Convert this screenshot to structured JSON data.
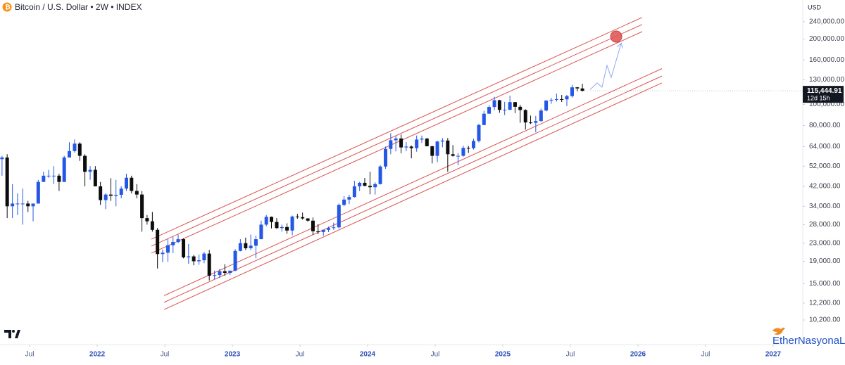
{
  "chart_data": {
    "type": "candlestick",
    "title": "Bitcoin / U.S. Dollar • 2W • INDEX",
    "currency": "USD",
    "watermark": "EtherNasyonaL",
    "log_scale": true,
    "grid": false,
    "up_color": "#2457e6",
    "down_color": "#0d0d0d",
    "xlim": [
      2021.281,
      2027.219
    ],
    "xticks": [
      {
        "value": 2021.5,
        "label": "Jul"
      },
      2022,
      {
        "value": 2022.5,
        "label": "Jul"
      },
      2023,
      {
        "value": 2023.5,
        "label": "Jul"
      },
      2024,
      {
        "value": 2024.5,
        "label": "Jul"
      },
      2025,
      {
        "value": 2025.5,
        "label": "Jul"
      },
      2026,
      {
        "value": 2026.5,
        "label": "Jul"
      },
      2027
    ],
    "ylim": [
      7860,
      302000
    ],
    "yticks": [
      {
        "value": 240000,
        "label": "240,000.00"
      },
      {
        "value": 200000,
        "label": "200,000.00"
      },
      {
        "value": 160000,
        "label": "160,000.00"
      },
      {
        "value": 130000,
        "label": "130,000.00"
      },
      {
        "value": 100000,
        "label": "100,000.00"
      },
      {
        "value": 80000,
        "label": "80,000.00"
      },
      {
        "value": 64000,
        "label": "64,000.00"
      },
      {
        "value": 52000,
        "label": "52,000.00"
      },
      {
        "value": 42000,
        "label": "42,000.00"
      },
      {
        "value": 34000,
        "label": "34,000.00"
      },
      {
        "value": 28000,
        "label": "28,000.00"
      },
      {
        "value": 23000,
        "label": "23,000.00"
      },
      {
        "value": 19000,
        "label": "19,000.00"
      },
      {
        "value": 15000,
        "label": "15,000.00"
      },
      {
        "value": 12200,
        "label": "12,200.00"
      },
      {
        "value": 10200,
        "label": "10,200.00"
      }
    ],
    "last_price": {
      "value": 115444.91,
      "label": "115,444.91"
    },
    "countdown": "12d 15h",
    "x": [
      2021.296,
      2021.334,
      2021.373,
      2021.411,
      2021.449,
      2021.488,
      2021.526,
      2021.564,
      2021.603,
      2021.641,
      2021.679,
      2021.718,
      2021.756,
      2021.794,
      2021.833,
      2021.871,
      2021.909,
      2021.948,
      2021.986,
      2022.024,
      2022.063,
      2022.101,
      2022.139,
      2022.178,
      2022.216,
      2022.254,
      2022.293,
      2022.331,
      2022.369,
      2022.408,
      2022.446,
      2022.484,
      2022.523,
      2022.561,
      2022.599,
      2022.638,
      2022.676,
      2022.714,
      2022.753,
      2022.791,
      2022.829,
      2022.868,
      2022.906,
      2022.944,
      2022.983,
      2023.021,
      2023.059,
      2023.098,
      2023.136,
      2023.174,
      2023.213,
      2023.251,
      2023.289,
      2023.328,
      2023.366,
      2023.404,
      2023.443,
      2023.481,
      2023.519,
      2023.558,
      2023.596,
      2023.634,
      2023.673,
      2023.711,
      2023.749,
      2023.788,
      2023.826,
      2023.864,
      2023.903,
      2023.941,
      2023.979,
      2024.018,
      2024.056,
      2024.094,
      2024.133,
      2024.171,
      2024.209,
      2024.248,
      2024.286,
      2024.324,
      2024.363,
      2024.401,
      2024.439,
      2024.478,
      2024.516,
      2024.554,
      2024.593,
      2024.631,
      2024.669,
      2024.708,
      2024.746,
      2024.784,
      2024.823,
      2024.861,
      2024.899,
      2024.938,
      2024.976,
      2025.014,
      2025.053,
      2025.091,
      2025.129,
      2025.168,
      2025.206,
      2025.244,
      2025.283,
      2025.321,
      2025.359,
      2025.398,
      2025.436,
      2025.474,
      2025.513,
      2025.551,
      2025.589
    ],
    "open": [
      56000,
      57000,
      34000,
      35000,
      35000,
      35000,
      34000,
      35000,
      44000,
      47000,
      47000,
      47000,
      44000,
      57000,
      61000,
      66000,
      58000,
      49000,
      50000,
      42000,
      36300,
      38500,
      38000,
      38400,
      41000,
      46000,
      40000,
      38500,
      30000,
      29000,
      26500,
      20500,
      20800,
      22500,
      23300,
      24000,
      19800,
      20000,
      19000,
      19200,
      20600,
      16300,
      16400,
      17100,
      16800,
      17200,
      21200,
      23000,
      21800,
      22400,
      24000,
      28000,
      30400,
      28800,
      27000,
      27300,
      26300,
      30500,
      30300,
      29900,
      29200,
      26100,
      25900,
      26500,
      27000,
      27200,
      34500,
      36500,
      37500,
      42000,
      43600,
      42200,
      41600,
      43000,
      51800,
      62400,
      68400,
      69700,
      63400,
      64000,
      62900,
      68900,
      69600,
      64200,
      58000,
      67500,
      68200,
      59000,
      58000,
      58000,
      63100,
      62900,
      67900,
      80400,
      90600,
      97300,
      104500,
      94400,
      94500,
      102400,
      97500,
      94200,
      82600,
      82300,
      83800,
      93700,
      104200,
      105000,
      105700,
      105500,
      109200,
      119800,
      118400
    ],
    "high": [
      58000,
      59000,
      43000,
      39000,
      41000,
      36000,
      35000,
      45000,
      49000,
      50000,
      52000,
      48000,
      58000,
      67000,
      69000,
      67000,
      59000,
      52000,
      52000,
      44000,
      39000,
      45800,
      45000,
      42000,
      48000,
      47000,
      43000,
      40000,
      31000,
      32000,
      27000,
      21500,
      24000,
      24600,
      25200,
      24200,
      22800,
      20300,
      20400,
      21000,
      21400,
      17200,
      17500,
      18400,
      17200,
      21600,
      24000,
      24400,
      25200,
      24900,
      29200,
      31000,
      30500,
      30000,
      28000,
      28400,
      30800,
      31400,
      31800,
      30000,
      30200,
      28100,
      26500,
      27400,
      28600,
      35000,
      37900,
      38400,
      44500,
      44000,
      45900,
      49000,
      43800,
      52500,
      64000,
      73700,
      71500,
      72700,
      67000,
      64700,
      71900,
      71900,
      70200,
      64500,
      68000,
      70000,
      70000,
      65000,
      59800,
      64500,
      64400,
      69500,
      81500,
      93500,
      99000,
      108400,
      105000,
      102700,
      109600,
      102500,
      99500,
      95000,
      88800,
      88500,
      95800,
      104300,
      107100,
      112000,
      110500,
      110600,
      123200,
      120200,
      124400
    ],
    "low": [
      47000,
      30000,
      30000,
      31000,
      28000,
      32000,
      29000,
      35000,
      44000,
      46000,
      43000,
      40000,
      44000,
      57000,
      60000,
      55000,
      42000,
      45000,
      42000,
      34500,
      33000,
      36000,
      34000,
      37000,
      40000,
      39000,
      37000,
      26000,
      28000,
      26000,
      17600,
      18800,
      18900,
      20700,
      23000,
      19600,
      18500,
      18200,
      18300,
      18600,
      15500,
      15700,
      15900,
      16300,
      16400,
      17100,
      21100,
      21400,
      21400,
      19600,
      24000,
      27500,
      26900,
      26800,
      26000,
      25400,
      25000,
      29800,
      29500,
      28900,
      25100,
      25300,
      24900,
      25900,
      26500,
      26900,
      34000,
      34800,
      37300,
      40000,
      42000,
      38600,
      38500,
      42800,
      50600,
      59000,
      60800,
      59600,
      61000,
      56500,
      60600,
      66600,
      64100,
      53500,
      54300,
      63500,
      49000,
      57500,
      52500,
      57500,
      59800,
      62000,
      66800,
      80200,
      90600,
      94100,
      91500,
      89300,
      94000,
      91200,
      82300,
      76600,
      81200,
      74400,
      83200,
      92900,
      100700,
      103100,
      102600,
      98200,
      107500,
      114700,
      114700
    ],
    "close": [
      57000,
      34000,
      35000,
      35000,
      35000,
      34000,
      35000,
      44000,
      47000,
      47000,
      47000,
      44000,
      57000,
      61000,
      66000,
      58000,
      49000,
      50000,
      42000,
      36300,
      38500,
      38000,
      38400,
      41000,
      46000,
      40000,
      38500,
      30000,
      29000,
      26500,
      20500,
      20800,
      22500,
      23300,
      24000,
      19800,
      20000,
      19000,
      19200,
      20600,
      16300,
      16400,
      17100,
      16800,
      17200,
      21200,
      23000,
      21800,
      22400,
      24000,
      28000,
      30400,
      28800,
      27000,
      27300,
      26300,
      30500,
      30300,
      29900,
      29200,
      26100,
      25900,
      26500,
      27000,
      27200,
      34500,
      36500,
      37500,
      42000,
      43600,
      42200,
      41600,
      43000,
      51800,
      62400,
      68400,
      69700,
      63400,
      64000,
      62900,
      68900,
      69600,
      64200,
      58000,
      67500,
      68200,
      59000,
      58000,
      58000,
      63100,
      62900,
      67900,
      80400,
      90600,
      97300,
      104500,
      94400,
      94500,
      102400,
      97500,
      94200,
      82600,
      82300,
      83800,
      93700,
      104200,
      105000,
      105700,
      105500,
      109200,
      119800,
      118400,
      115444.91
    ],
    "channel_color": "#d9534f",
    "channel_lines": [
      {
        "x": [
          2022.401,
          2026.031
        ],
        "y": [
          24000,
          251000
        ]
      },
      {
        "x": [
          2022.401,
          2026.031
        ],
        "y": [
          22300,
          233000
        ]
      },
      {
        "x": [
          2022.401,
          2026.031
        ],
        "y": [
          20700,
          216000
        ]
      },
      {
        "x": [
          2022.495,
          2026.177
        ],
        "y": [
          13200,
          146000
        ]
      },
      {
        "x": [
          2022.495,
          2026.177
        ],
        "y": [
          12300,
          135000
        ]
      },
      {
        "x": [
          2022.495,
          2026.177
        ],
        "y": [
          11400,
          125500
        ]
      }
    ],
    "projection": {
      "color": "#8fa8f5",
      "x": [
        2025.646,
        2025.698,
        2025.734,
        2025.771,
        2025.802,
        2025.875
      ],
      "y": [
        117000,
        125500,
        120000,
        151000,
        133000,
        190000
      ]
    },
    "target": {
      "color": "#e05a5a",
      "x": 2025.839,
      "y": 205000
    }
  }
}
